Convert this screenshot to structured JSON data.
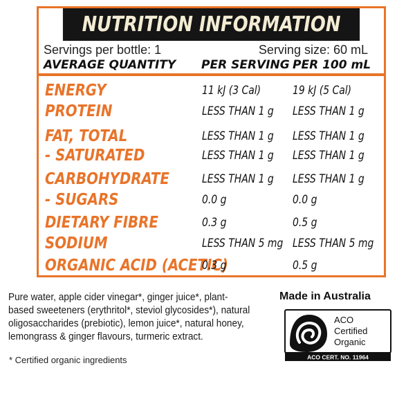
{
  "panel": {
    "title": "NUTRITION INFORMATION",
    "servings_per_bottle": "Servings per bottle: 1",
    "serving_size": "Serving size: 60 mL",
    "headers": [
      "AVERAGE QUANTITY",
      "PER SERVING",
      "PER 100 mL"
    ],
    "rows": [
      {
        "label": "ENERGY",
        "per_serving": "11 kJ (3 Cal)",
        "per_100ml": "19 kJ (5 Cal)"
      },
      {
        "label": "PROTEIN",
        "per_serving": "LESS THAN 1 g",
        "per_100ml": "LESS THAN 1 g"
      },
      {
        "label": "FAT, TOTAL",
        "per_serving": "LESS THAN 1 g",
        "per_100ml": "LESS THAN 1 g"
      },
      {
        "label": "- SATURATED",
        "per_serving": "LESS THAN 1 g",
        "per_100ml": "LESS THAN 1 g"
      },
      {
        "label": "CARBOHYDRATE",
        "per_serving": "LESS THAN 1 g",
        "per_100ml": "LESS THAN 1 g"
      },
      {
        "label": "- SUGARS",
        "per_serving": "0.0 g",
        "per_100ml": "0.0 g"
      },
      {
        "label": "DIETARY FIBRE",
        "per_serving": "0.3 g",
        "per_100ml": "0.5 g"
      },
      {
        "label": "SODIUM",
        "per_serving": "LESS THAN 5 mg",
        "per_100ml": "LESS THAN 5 mg"
      },
      {
        "label": "ORGANIC ACID (ACETIC)",
        "per_serving": "0.3 g",
        "per_100ml": "0.5 g"
      }
    ]
  },
  "ingredients": {
    "lines": [
      "Pure water, apple cider vinegar*, ginger juice*, plant-",
      "based sweeteners (erythritol*, steviol glycosides*), natural",
      "oligosaccharides (prebiotic), lemon juice*, natural honey,",
      "lemongrass & ginger flavours, turmeric extract."
    ],
    "footnote": "* Certified organic ingredients"
  },
  "origin": {
    "made_in": "Made in Australia",
    "cert_line1": "ACO",
    "cert_line2": "Certified",
    "cert_line3": "Organic",
    "cert_number": "ACO CERT. NO. 11964"
  },
  "colors": {
    "accent": "#e8742a",
    "title_bg": "#151515",
    "title_text": "#f3ecd4"
  },
  "icons": {
    "certification_logo": "aco-certified-organic-bud-logo"
  }
}
